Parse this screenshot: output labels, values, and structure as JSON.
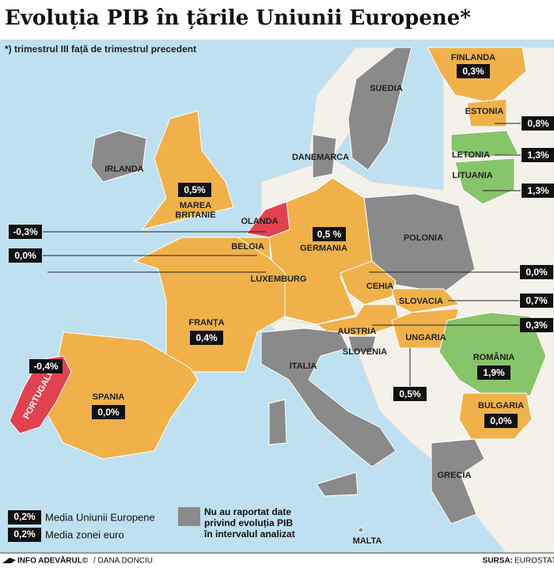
{
  "title": "Evoluția PIB în țările Uniunii Europene*",
  "note": "*) trimestrul III față de trimestrul precedent",
  "countries": [
    {
      "name": "FINLANDA",
      "value": "0,3%"
    },
    {
      "name": "ESTONIA",
      "value": "0,8%"
    },
    {
      "name": "LETONIA",
      "value": "1,3%"
    },
    {
      "name": "LITUANIA",
      "value": "1,3%"
    },
    {
      "name": [
        "MAREA",
        "BRITANIE"
      ],
      "value": "0,5%"
    },
    {
      "name": "OLANDA",
      "value": "-0,3%"
    },
    {
      "name": "BELGIA",
      "value": "0,0%"
    },
    {
      "name": "LUXEMBURG"
    },
    {
      "name": "GERMANIA",
      "value": "0,5 %"
    },
    {
      "name": "CEHIA",
      "value": "0,0%"
    },
    {
      "name": "SLOVACIA",
      "value": "0,7%"
    },
    {
      "name": "AUSTRIA",
      "value": "0,3%"
    },
    {
      "name": "UNGARIA",
      "value": "0,5%"
    },
    {
      "name": "SLOVENIA"
    },
    {
      "name": "ROMÂNIA",
      "value": "1,9%"
    },
    {
      "name": "BULGARIA",
      "value": "0,0%"
    },
    {
      "name": "FRANȚA",
      "value": "0,4%"
    },
    {
      "name": "SPANIA",
      "value": "0,0%"
    },
    {
      "name": "PORTUGALIA",
      "value": "-0,4%"
    },
    {
      "name": "SUEDIA"
    },
    {
      "name": "IRLANDA"
    },
    {
      "name": "DANEMARCA"
    },
    {
      "name": "POLONIA"
    },
    {
      "name": "ITALIA"
    },
    {
      "name": "GRECIA"
    },
    {
      "name": "MALTA"
    }
  ],
  "legend": {
    "eu_value": "0,2%",
    "eu_label": "Media Uniunii Europene",
    "euro_value": "0,2%",
    "euro_label": "Media zonei euro",
    "no_data": [
      "Nu au raportat date",
      "privind evoluția PIB",
      "în intervalul analizat"
    ]
  },
  "footer": {
    "brand": "INFO ADEVĂRUL©",
    "author": "/ DANA DONCIU",
    "source_label": "SURSA:",
    "source": "EUROSTAT"
  }
}
